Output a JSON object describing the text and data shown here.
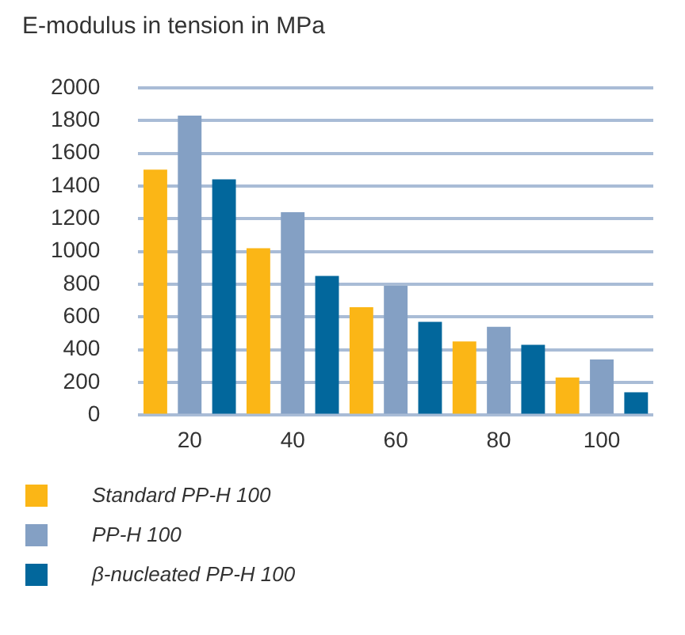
{
  "chart_data": {
    "type": "bar",
    "title": "E-modulus in tension in MPa",
    "categories": [
      "20",
      "40",
      "60",
      "80",
      "100"
    ],
    "series": [
      {
        "name": "Standard PP-H 100",
        "color": "#fbb616",
        "values": [
          1500,
          1020,
          660,
          450,
          230
        ]
      },
      {
        "name": "PP-H 100",
        "color": "#84a0c4",
        "values": [
          1830,
          1240,
          790,
          540,
          340
        ]
      },
      {
        "name": "β-nucleated PP-H 100",
        "color": "#02679c",
        "values": [
          1440,
          850,
          570,
          430,
          140
        ]
      }
    ],
    "ylim": [
      0,
      2000
    ],
    "yticks": [
      0,
      200,
      400,
      600,
      800,
      1000,
      1200,
      1400,
      1600,
      1800,
      2000
    ],
    "grid": "y",
    "legend": "bottom"
  }
}
